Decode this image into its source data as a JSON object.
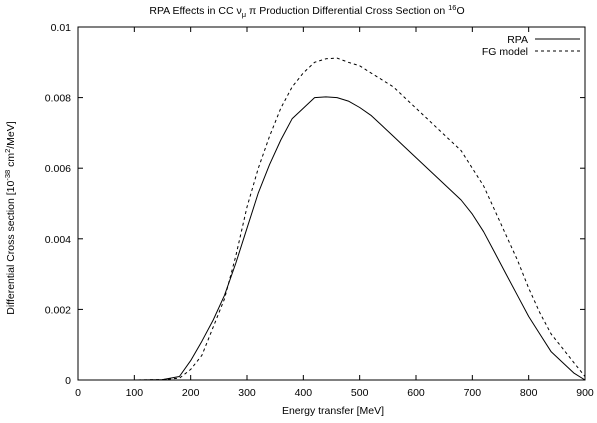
{
  "chart_data": {
    "type": "line",
    "title": {
      "prefix": "RPA Effects in CC ",
      "nu": "ν",
      "mu": "μ",
      "pi_part": " π Production Differential Cross Section on ",
      "iso_mass": "16",
      "element": "O"
    },
    "xlabel": "Energy transfer [MeV]",
    "ylabel": {
      "prefix": "Differential Cross section [10",
      "exp1": "-38",
      "middle": " cm",
      "exp2": "2",
      "suffix": "/MeV]"
    },
    "xlim": [
      0,
      900
    ],
    "ylim": [
      0,
      0.01
    ],
    "x_ticks": [
      0,
      100,
      200,
      300,
      400,
      500,
      600,
      700,
      800,
      900
    ],
    "x_tick_labels": [
      "0",
      "100",
      "200",
      "300",
      "400",
      "500",
      "600",
      "700",
      "800",
      "900"
    ],
    "y_ticks": [
      0,
      0.002,
      0.004,
      0.006,
      0.008,
      0.01
    ],
    "y_tick_labels": [
      "0",
      "0.002",
      "0.004",
      "0.006",
      "0.008",
      "0.01"
    ],
    "grid": false,
    "legend_position": "top-right",
    "series": [
      {
        "name": "RPA",
        "style": "solid",
        "color": "#000000",
        "x": [
          0,
          100,
          150,
          180,
          200,
          220,
          240,
          260,
          280,
          300,
          320,
          340,
          360,
          380,
          400,
          420,
          440,
          460,
          480,
          500,
          520,
          540,
          560,
          580,
          600,
          620,
          640,
          660,
          680,
          700,
          720,
          740,
          760,
          780,
          800,
          820,
          840,
          860,
          880,
          900
        ],
        "y": [
          0,
          0,
          1e-05,
          0.0001,
          0.00055,
          0.0011,
          0.0017,
          0.0024,
          0.0033,
          0.0043,
          0.0053,
          0.0061,
          0.0068,
          0.0074,
          0.0077,
          0.008,
          0.00802,
          0.008,
          0.0079,
          0.00772,
          0.0075,
          0.0072,
          0.0069,
          0.0066,
          0.0063,
          0.006,
          0.0057,
          0.0054,
          0.0051,
          0.0047,
          0.0042,
          0.0036,
          0.003,
          0.0024,
          0.0018,
          0.0013,
          0.0008,
          0.0005,
          0.0002,
          0
        ]
      },
      {
        "name": "FG model",
        "style": "dashed",
        "color": "#000000",
        "x": [
          0,
          100,
          150,
          180,
          200,
          220,
          240,
          260,
          280,
          300,
          320,
          340,
          360,
          380,
          400,
          420,
          440,
          460,
          480,
          500,
          520,
          540,
          560,
          580,
          600,
          620,
          640,
          660,
          680,
          700,
          720,
          740,
          760,
          780,
          800,
          820,
          840,
          860,
          880,
          900
        ],
        "y": [
          0,
          0,
          1e-05,
          5e-05,
          0.0003,
          0.0007,
          0.0015,
          0.0023,
          0.0035,
          0.0049,
          0.006,
          0.0069,
          0.0077,
          0.0083,
          0.0087,
          0.009,
          0.0091,
          0.00912,
          0.009,
          0.0089,
          0.0087,
          0.0085,
          0.0083,
          0.008,
          0.0077,
          0.0074,
          0.0071,
          0.0068,
          0.0065,
          0.006,
          0.0055,
          0.0048,
          0.0041,
          0.0034,
          0.0026,
          0.0019,
          0.0013,
          0.0009,
          0.0005,
          0.0001
        ]
      }
    ]
  }
}
